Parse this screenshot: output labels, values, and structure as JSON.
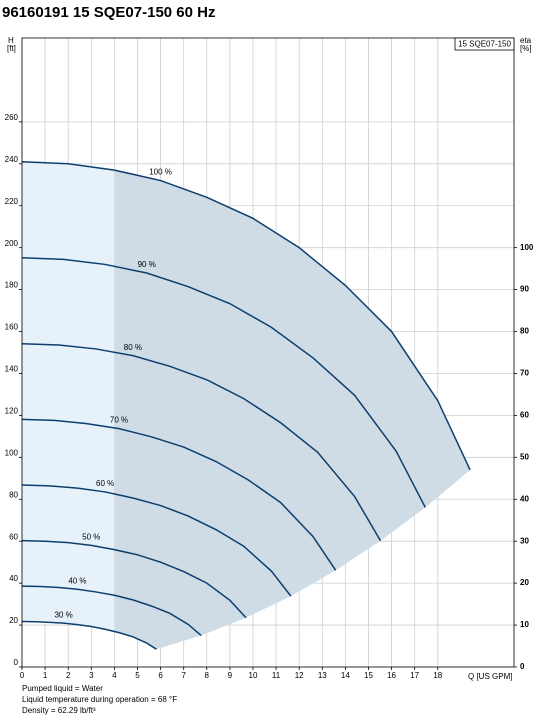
{
  "chart_data": {
    "type": "line",
    "title": "96160191 15 SQE07-150 60 Hz",
    "legend_box": "15 SQE07-150",
    "y_label": "H",
    "y_unit": "[ft]",
    "y2_label": "eta",
    "y2_unit": "[%]",
    "x_label": "Q [US GPM]",
    "notes": [
      "Pumped liquid = Water",
      "Liquid temperature during operation = 68 °F",
      "Density = 62.29 lb/ft³"
    ],
    "xlim": [
      0,
      21.3
    ],
    "xticks": [
      0,
      1,
      2,
      3,
      4,
      5,
      6,
      7,
      8,
      9,
      10,
      11,
      12,
      13,
      14,
      15,
      16,
      17,
      18
    ],
    "ylim": [
      0,
      300
    ],
    "yticks": [
      0,
      20,
      40,
      60,
      80,
      100,
      120,
      140,
      160,
      180,
      200,
      220,
      240,
      260
    ],
    "y2lim": [
      0,
      150
    ],
    "y2ticks": [
      0,
      10,
      20,
      30,
      40,
      50,
      60,
      70,
      80,
      90,
      100
    ],
    "grid": true,
    "operating_region": {
      "split_x": 4,
      "colors": [
        "#e6f1fa",
        "#cfdbe5"
      ]
    },
    "series": [
      {
        "name": "100 %",
        "color": "#0d3f6e",
        "x": [
          0,
          2,
          4,
          6,
          8,
          10,
          12,
          14,
          16,
          18,
          19.4
        ],
        "values": [
          241,
          240,
          237,
          232,
          224,
          214,
          200,
          182,
          160,
          127,
          94
        ]
      },
      {
        "name": "90 %",
        "color": "#0d3f6e",
        "x": [
          0,
          1.8,
          3.6,
          5.4,
          7.2,
          9,
          10.8,
          12.6,
          14.4,
          16.2,
          17.46
        ],
        "values": [
          195.2,
          194.4,
          192,
          187.9,
          181.4,
          173.3,
          162,
          147.4,
          129.6,
          102.9,
          76.1
        ]
      },
      {
        "name": "80 %",
        "color": "#0d3f6e",
        "x": [
          0,
          1.6,
          3.2,
          4.8,
          6.4,
          8,
          9.6,
          11.2,
          12.8,
          14.4,
          15.52
        ],
        "values": [
          154.2,
          153.6,
          151.7,
          148.5,
          143.4,
          137,
          128,
          116.5,
          102.4,
          81.3,
          60.2
        ]
      },
      {
        "name": "70 %",
        "color": "#0d3f6e",
        "x": [
          0,
          1.4,
          2.8,
          4.2,
          5.6,
          7,
          8.4,
          9.8,
          11.2,
          12.6,
          13.58
        ],
        "values": [
          118.1,
          117.6,
          116.1,
          113.7,
          109.8,
          104.9,
          98,
          89.2,
          78.4,
          62.2,
          46.1
        ]
      },
      {
        "name": "60 %",
        "color": "#0d3f6e",
        "x": [
          0,
          1.2,
          2.4,
          3.6,
          4.8,
          6,
          7.2,
          8.4,
          9.6,
          10.8,
          11.64
        ],
        "values": [
          86.8,
          86.4,
          85.3,
          83.5,
          80.6,
          77,
          72,
          65.5,
          57.6,
          45.7,
          33.8
        ]
      },
      {
        "name": "50 %",
        "color": "#0d3f6e",
        "x": [
          0,
          1,
          2,
          3,
          4,
          5,
          6,
          7,
          8,
          9,
          9.7
        ],
        "values": [
          60.3,
          60,
          59.3,
          58,
          56,
          53.5,
          50,
          45.5,
          40,
          31.8,
          23.5
        ]
      },
      {
        "name": "40 %",
        "color": "#0d3f6e",
        "x": [
          0,
          0.8,
          1.6,
          2.4,
          3.2,
          4,
          4.8,
          5.6,
          6.4,
          7.2,
          7.76
        ],
        "values": [
          38.6,
          38.4,
          37.9,
          37.1,
          35.8,
          34.2,
          32,
          29.1,
          25.6,
          20.3,
          15
        ]
      },
      {
        "name": "30 %",
        "color": "#0d3f6e",
        "x": [
          0,
          0.6,
          1.2,
          1.8,
          2.4,
          3,
          3.6,
          4.2,
          4.8,
          5.4,
          5.82
        ],
        "values": [
          21.7,
          21.6,
          21.3,
          20.9,
          20.2,
          19.3,
          18,
          16.4,
          14.4,
          11.4,
          8.5
        ]
      }
    ]
  }
}
